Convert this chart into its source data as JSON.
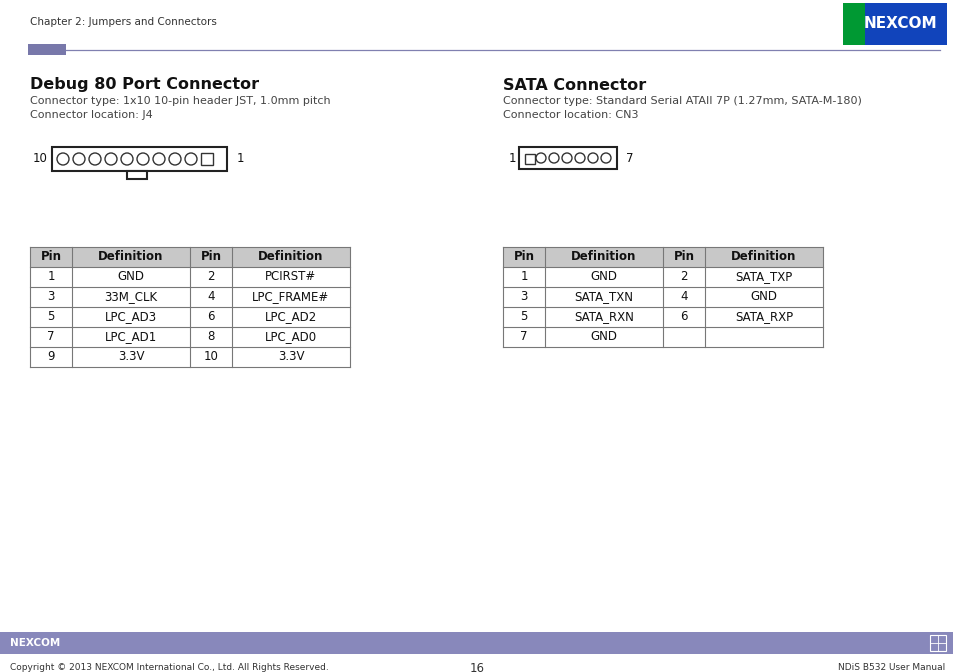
{
  "page_header": "Chapter 2: Jumpers and Connectors",
  "page_number": "16",
  "footer_left": "Copyright © 2013 NEXCOM International Co., Ltd. All Rights Reserved.",
  "footer_right": "NDiS B532 User Manual",
  "header_line_color": "#8080b0",
  "header_rect_color": "#7878aa",
  "footer_bar_color": "#8888bb",
  "nexcom_blue": "#0033aa",
  "nexcom_green_left": "#009933",
  "left_section": {
    "title": "Debug 80 Port Connector",
    "subtitle1": "Connector type: 1x10 10-pin header JST, 1.0mm pitch",
    "subtitle2": "Connector location: J4",
    "table_headers": [
      "Pin",
      "Definition",
      "Pin",
      "Definition"
    ],
    "table_rows": [
      [
        "1",
        "GND",
        "2",
        "PCIRST#"
      ],
      [
        "3",
        "33M_CLK",
        "4",
        "LPC_FRAME#"
      ],
      [
        "5",
        "LPC_AD3",
        "6",
        "LPC_AD2"
      ],
      [
        "7",
        "LPC_AD1",
        "8",
        "LPC_AD0"
      ],
      [
        "9",
        "3.3V",
        "10",
        "3.3V"
      ]
    ]
  },
  "right_section": {
    "title": "SATA Connector",
    "subtitle1": "Connector type: Standard Serial ATAII 7P (1.27mm, SATA-M-180)",
    "subtitle2": "Connector location: CN3",
    "table_headers": [
      "Pin",
      "Definition",
      "Pin",
      "Definition"
    ],
    "table_rows": [
      [
        "1",
        "GND",
        "2",
        "SATA_TXP"
      ],
      [
        "3",
        "SATA_TXN",
        "4",
        "GND"
      ],
      [
        "5",
        "SATA_RXN",
        "6",
        "SATA_RXP"
      ],
      [
        "7",
        "GND",
        "",
        ""
      ]
    ]
  }
}
